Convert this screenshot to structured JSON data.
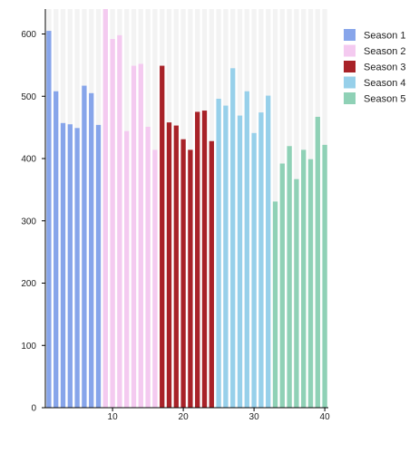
{
  "chart_data": {
    "type": "bar",
    "x": [
      1,
      2,
      3,
      4,
      5,
      6,
      7,
      8,
      9,
      10,
      11,
      12,
      13,
      14,
      15,
      16,
      17,
      18,
      19,
      20,
      21,
      22,
      23,
      24,
      25,
      26,
      27,
      28,
      29,
      30,
      31,
      32,
      33,
      34,
      35,
      36,
      37,
      38,
      39,
      40
    ],
    "series": [
      {
        "name": "Season 1",
        "color": "#87a5ea",
        "x": [
          1,
          2,
          3,
          4,
          5,
          6,
          7,
          8
        ],
        "values": [
          605,
          508,
          457,
          455,
          449,
          517,
          505,
          454
        ]
      },
      {
        "name": "Season 2",
        "color": "#f4caf0",
        "x": [
          9,
          10,
          11,
          12,
          13,
          14,
          15,
          16
        ],
        "values": [
          641,
          592,
          598,
          444,
          549,
          552,
          451,
          414
        ]
      },
      {
        "name": "Season 3",
        "color": "#a82228",
        "x": [
          17,
          18,
          19,
          20,
          21,
          22,
          23,
          24
        ],
        "values": [
          549,
          458,
          453,
          431,
          414,
          475,
          477,
          428
        ]
      },
      {
        "name": "Season 4",
        "color": "#97d0ea",
        "x": [
          25,
          26,
          27,
          28,
          29,
          30,
          31,
          32
        ],
        "values": [
          496,
          485,
          545,
          469,
          508,
          441,
          474,
          501
        ]
      },
      {
        "name": "Season 5",
        "color": "#8fd1b6",
        "x": [
          33,
          34,
          35,
          36,
          37,
          38,
          39,
          40
        ],
        "values": [
          331,
          392,
          420,
          367,
          414,
          399,
          467,
          422
        ]
      }
    ],
    "background_bar_color": "#f3f3f3",
    "title": "",
    "xlabel": "",
    "ylabel": "",
    "xlim": [
      0.5,
      40.5
    ],
    "ylim": [
      0,
      640
    ],
    "xticks": [
      10,
      20,
      30,
      40
    ],
    "yticks": [
      0,
      100,
      200,
      300,
      400,
      500,
      600
    ],
    "grid": false,
    "legend": "right"
  }
}
